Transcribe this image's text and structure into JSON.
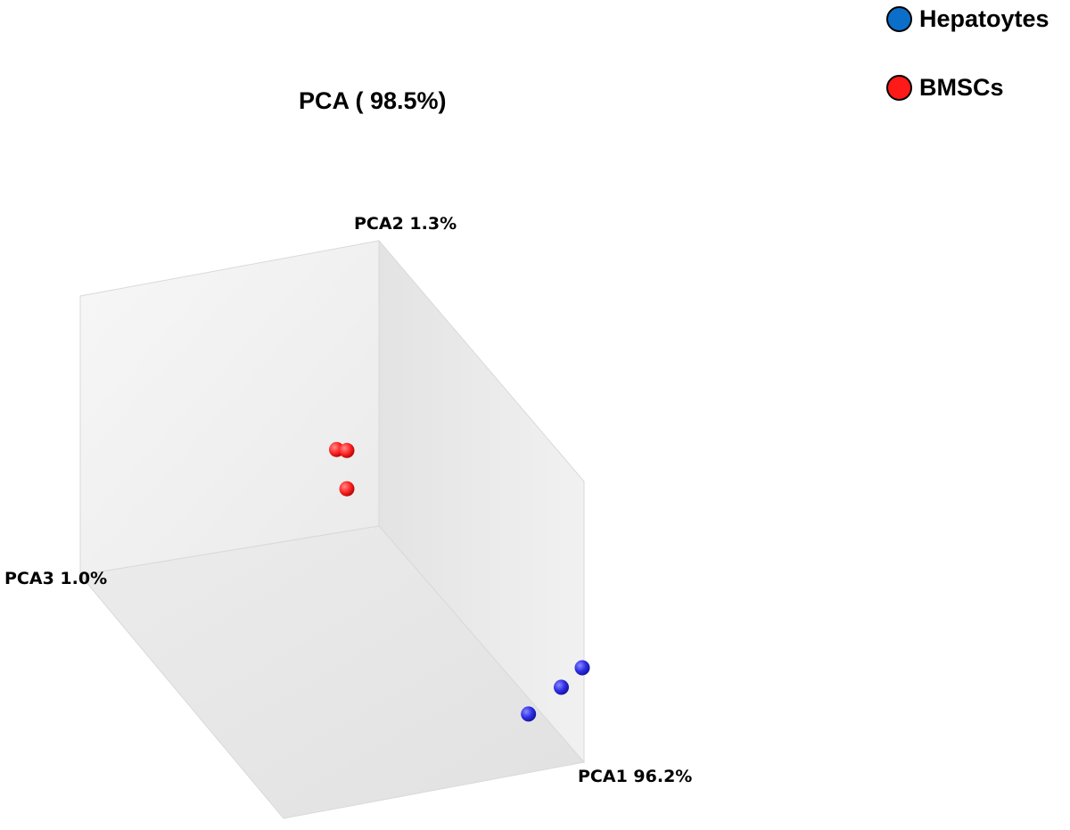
{
  "chart_data": {
    "type": "scatter",
    "title": "PCA ( 98.5%)",
    "axes": {
      "x_label": "PCA1 96.2%",
      "y_label": "PCA2 1.3%",
      "z_label": "PCA3 1.0%"
    },
    "grid": false,
    "legend_placement": "top-right",
    "series": [
      {
        "name": "Hepatoytes",
        "color": "#0b6fc9",
        "point_color": "#2f2fe6",
        "points": [
          {
            "x": 0.82,
            "y": 0.12
          },
          {
            "x": 0.93,
            "y": 0.16
          },
          {
            "x": 1.0,
            "y": 0.19
          }
        ]
      },
      {
        "name": "BMSCs",
        "color": "#ff1a1a",
        "point_color": "#ff2626",
        "points": [
          {
            "x": 0.5,
            "y": 0.64
          },
          {
            "x": 0.52,
            "y": 0.635
          },
          {
            "x": 0.52,
            "y": 0.44
          }
        ]
      }
    ]
  }
}
